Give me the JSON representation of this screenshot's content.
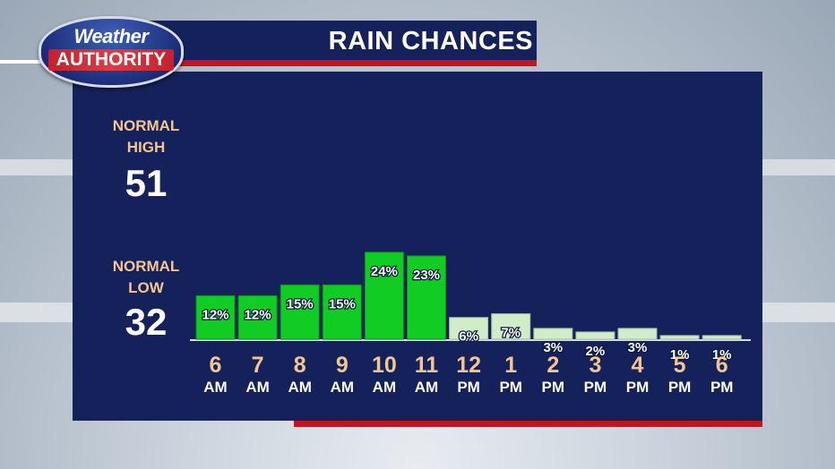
{
  "title": "RAIN CHANCES",
  "logo": {
    "line1": "Weather",
    "line2": "AUTHORITY"
  },
  "normals": {
    "high": {
      "label_line1": "NORMAL",
      "label_line2": "HIGH",
      "value": "51"
    },
    "low": {
      "label_line1": "NORMAL",
      "label_line2": "LOW",
      "value": "32"
    }
  },
  "colors": {
    "panel": "#15215a",
    "accent_red": "#c0161f",
    "bar_high": "#11cc22",
    "bar_low": "#d0ecc8",
    "tick_number": "#f3c68f",
    "tick_period": "#ffffff"
  },
  "chart_data": {
    "type": "bar",
    "title": "RAIN CHANCES",
    "categories": [
      "6 AM",
      "7 AM",
      "8 AM",
      "9 AM",
      "10 AM",
      "11 AM",
      "12 PM",
      "1 PM",
      "2 PM",
      "3 PM",
      "4 PM",
      "5 PM",
      "6 PM"
    ],
    "tick_numbers": [
      "6",
      "7",
      "8",
      "9",
      "10",
      "11",
      "12",
      "1",
      "2",
      "3",
      "4",
      "5",
      "6"
    ],
    "tick_periods": [
      "AM",
      "AM",
      "AM",
      "AM",
      "AM",
      "AM",
      "PM",
      "PM",
      "PM",
      "PM",
      "PM",
      "PM",
      "PM"
    ],
    "values": [
      12,
      12,
      15,
      15,
      24,
      23,
      6,
      7,
      3,
      2,
      3,
      1,
      1
    ],
    "data_labels": [
      "12%",
      "12%",
      "15%",
      "15%",
      "24%",
      "23%",
      "6%",
      "7%",
      "3%",
      "2%",
      "3%",
      "1%",
      "1%"
    ],
    "unit": "%",
    "grid": false,
    "legend": "none"
  }
}
